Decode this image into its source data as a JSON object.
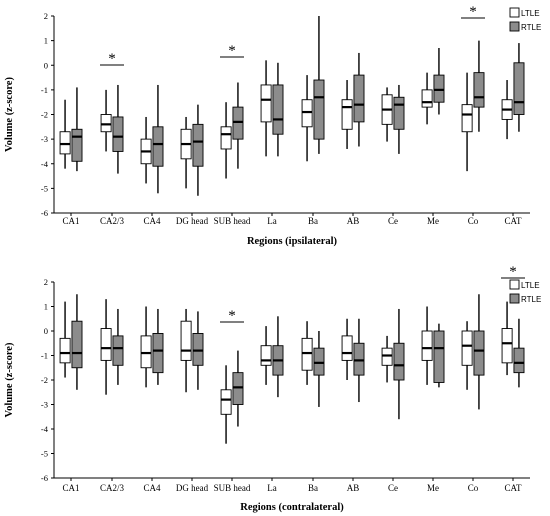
{
  "colors": {
    "LTLE": "#ffffff",
    "RTLE": "#8c8c8c",
    "stroke": "#000000"
  },
  "chart_data": [
    {
      "type": "box",
      "ylabel": "Volume (z-score)",
      "xlabel": "Regions (ipsilateral)",
      "ylim": [
        -6,
        2
      ],
      "yticks": [
        2,
        1,
        0,
        -1,
        -2,
        -3,
        -4,
        -5,
        -6
      ],
      "categories": [
        "CA1",
        "CA2/3",
        "CA4",
        "DG head",
        "SUB head",
        "La",
        "Ba",
        "AB",
        "Ce",
        "Me",
        "Co",
        "CAT"
      ],
      "legend": [
        "LTLE",
        "RTLE"
      ],
      "significant": [
        "CA2/3",
        "SUB head",
        "Co"
      ],
      "series": [
        {
          "name": "LTLE",
          "boxes": [
            [
              -4.2,
              -3.6,
              -3.2,
              -2.7,
              -1.4
            ],
            [
              -3.5,
              -2.7,
              -2.4,
              -2.0,
              -1.0
            ],
            [
              -4.8,
              -4.0,
              -3.5,
              -3.0,
              -2.1
            ],
            [
              -5.0,
              -3.8,
              -3.2,
              -2.6,
              -2.1
            ],
            [
              -4.6,
              -3.4,
              -2.8,
              -2.5,
              -1.5
            ],
            [
              -3.7,
              -2.3,
              -1.4,
              -0.8,
              0.2
            ],
            [
              -3.9,
              -2.5,
              -1.9,
              -1.4,
              -0.4
            ],
            [
              -3.4,
              -2.6,
              -1.7,
              -1.4,
              -0.6
            ],
            [
              -3.1,
              -2.4,
              -1.8,
              -1.2,
              -0.9
            ],
            [
              -2.4,
              -1.7,
              -1.5,
              -1.0,
              -0.3
            ],
            [
              -4.3,
              -2.7,
              -2.0,
              -1.6,
              -0.3
            ],
            [
              -3.0,
              -2.2,
              -1.8,
              -1.4,
              -0.6
            ]
          ]
        },
        {
          "name": "RTLE",
          "boxes": [
            [
              -4.3,
              -3.9,
              -2.9,
              -2.6,
              -0.9
            ],
            [
              -4.4,
              -3.5,
              -2.9,
              -2.1,
              -0.8
            ],
            [
              -5.2,
              -4.1,
              -3.2,
              -2.5,
              -0.8
            ],
            [
              -5.3,
              -4.1,
              -3.1,
              -2.4,
              -1.6
            ],
            [
              -4.2,
              -3.0,
              -2.3,
              -1.7,
              -0.7
            ],
            [
              -3.7,
              -2.8,
              -2.2,
              -0.8,
              0.1
            ],
            [
              -3.6,
              -3.0,
              -1.3,
              -0.6,
              2.0
            ],
            [
              -3.3,
              -2.3,
              -1.6,
              -0.4,
              0.5
            ],
            [
              -3.6,
              -2.6,
              -1.6,
              -1.3,
              -0.8
            ],
            [
              -2.0,
              -1.5,
              -1.0,
              -0.4,
              0.7
            ],
            [
              -2.7,
              -1.7,
              -1.3,
              -0.3,
              1.0
            ],
            [
              -2.7,
              -2.0,
              -1.5,
              0.1,
              0.9
            ]
          ]
        }
      ]
    },
    {
      "type": "box",
      "ylabel": "Volume (z-score)",
      "xlabel": "Regions (contralateral)",
      "ylim": [
        -6,
        2
      ],
      "yticks": [
        2,
        1,
        0,
        -1,
        -2,
        -3,
        -4,
        -5,
        -6
      ],
      "categories": [
        "CA1",
        "CA2/3",
        "CA4",
        "DG head",
        "SUB head",
        "La",
        "Ba",
        "AB",
        "Ce",
        "Me",
        "Co",
        "CAT"
      ],
      "legend": [
        "LTLE",
        "RTLE"
      ],
      "significant": [
        "SUB head",
        "CAT"
      ],
      "series": [
        {
          "name": "LTLE",
          "boxes": [
            [
              -1.9,
              -1.3,
              -0.9,
              -0.3,
              1.2
            ],
            [
              -2.6,
              -1.2,
              -0.7,
              0.1,
              1.3
            ],
            [
              -2.3,
              -1.5,
              -0.9,
              -0.2,
              1.0
            ],
            [
              -2.5,
              -1.2,
              -0.8,
              0.4,
              0.9
            ],
            [
              -4.6,
              -3.4,
              -2.8,
              -2.4,
              -1.4
            ],
            [
              -2.2,
              -1.4,
              -1.2,
              -0.6,
              0.2
            ],
            [
              -2.2,
              -1.6,
              -0.9,
              -0.3,
              0.4
            ],
            [
              -2.0,
              -1.2,
              -0.9,
              -0.2,
              0.5
            ],
            [
              -2.1,
              -1.4,
              -1.0,
              -0.7,
              -0.2
            ],
            [
              -2.2,
              -1.2,
              -0.7,
              0.0,
              1.0
            ],
            [
              -2.4,
              -1.4,
              -0.6,
              0.0,
              0.4
            ],
            [
              -1.8,
              -1.3,
              -0.5,
              0.1,
              1.2
            ]
          ]
        },
        {
          "name": "RTLE",
          "boxes": [
            [
              -2.4,
              -1.5,
              -0.9,
              0.4,
              1.5
            ],
            [
              -2.2,
              -1.4,
              -0.7,
              -0.2,
              0.9
            ],
            [
              -2.2,
              -1.7,
              -0.8,
              -0.1,
              0.9
            ],
            [
              -2.4,
              -1.4,
              -0.8,
              -0.1,
              0.8
            ],
            [
              -3.9,
              -3.0,
              -2.3,
              -1.7,
              -0.8
            ],
            [
              -2.7,
              -1.8,
              -1.2,
              -0.6,
              0.6
            ],
            [
              -3.1,
              -1.8,
              -1.3,
              -0.7,
              0.0
            ],
            [
              -2.9,
              -1.8,
              -1.2,
              -0.5,
              0.5
            ],
            [
              -3.6,
              -2.0,
              -1.4,
              -0.5,
              0.9
            ],
            [
              -2.3,
              -2.1,
              -0.7,
              0.0,
              0.3
            ],
            [
              -3.2,
              -1.8,
              -0.8,
              0.0,
              1.5
            ],
            [
              -2.3,
              -1.7,
              -1.3,
              -0.7,
              0.5
            ]
          ]
        }
      ]
    }
  ],
  "sig_marker": "*"
}
